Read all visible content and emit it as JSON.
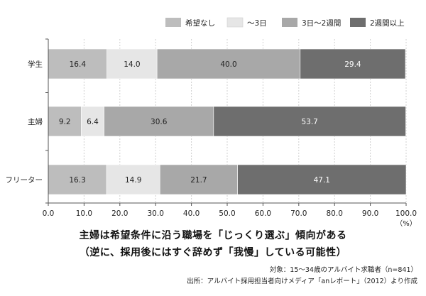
{
  "chart_data": {
    "type": "bar",
    "orientation": "horizontal",
    "stacked": true,
    "categories": [
      "学生",
      "主婦",
      "フリーター"
    ],
    "series": [
      {
        "name": "希望なし",
        "values": [
          16.4,
          9.2,
          16.3
        ],
        "color": "#bdbdbd",
        "label_color": "#222222"
      },
      {
        "name": "〜3日",
        "values": [
          14.0,
          6.4,
          14.9
        ],
        "color": "#e6e6e6",
        "label_color": "#222222"
      },
      {
        "name": "3日〜2週間",
        "values": [
          40.0,
          30.6,
          21.7
        ],
        "color": "#a8a8a8",
        "label_color": "#222222"
      },
      {
        "name": "2週間以上",
        "values": [
          29.4,
          53.7,
          47.1
        ],
        "color": "#6e6e6e",
        "label_color": "#ffffff"
      }
    ],
    "x_ticks": [
      "0.0",
      "10.0",
      "20.0",
      "30.0",
      "40.0",
      "50.0",
      "60.0",
      "70.0",
      "80.0",
      "90.0",
      "100.0"
    ],
    "x_unit": "（%）",
    "xlim": [
      0,
      100
    ],
    "legend_position": "top"
  },
  "caption": {
    "line1": "主婦は希望条件に沿う職場を「じっくり選ぶ」傾向がある",
    "line2": "（逆に、採用後にはすぐ辞めず「我慢」している可能性）"
  },
  "notes": {
    "target": "対象：15〜34歳のアルバイト求職者（n=841）",
    "source": "出所：アルバイト採用担当者向けメディア「anレポート」（2012）より作成"
  }
}
